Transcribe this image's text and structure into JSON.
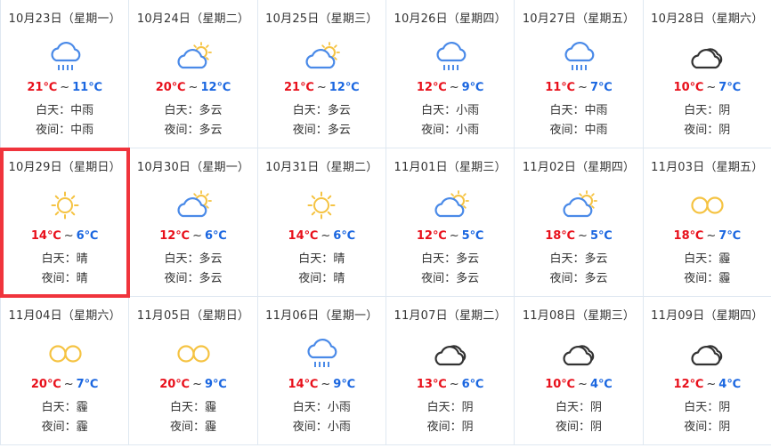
{
  "colors": {
    "high": "#e8101b",
    "low": "#1a66e0",
    "selected_border": "#f0343c",
    "rain_icon": "#4a8ae8",
    "sun_icon": "#f5c342",
    "overcast_icon": "#333333"
  },
  "labels": {
    "day": "白天：",
    "night": "夜间：",
    "tilde": "~"
  },
  "selected_index": 6,
  "days": [
    {
      "date": "10月23日（星期一）",
      "icon": "rain-icon",
      "high": "21℃",
      "low": "11℃",
      "day": "中雨",
      "night": "中雨"
    },
    {
      "date": "10月24日（星期二）",
      "icon": "partly-cloudy-icon",
      "high": "20℃",
      "low": "12℃",
      "day": "多云",
      "night": "多云"
    },
    {
      "date": "10月25日（星期三）",
      "icon": "partly-cloudy-icon",
      "high": "21℃",
      "low": "12℃",
      "day": "多云",
      "night": "多云"
    },
    {
      "date": "10月26日（星期四）",
      "icon": "rain-icon",
      "high": "12℃",
      "low": "9℃",
      "day": "小雨",
      "night": "小雨"
    },
    {
      "date": "10月27日（星期五）",
      "icon": "rain-icon",
      "high": "11℃",
      "low": "7℃",
      "day": "中雨",
      "night": "中雨"
    },
    {
      "date": "10月28日（星期六）",
      "icon": "overcast-icon",
      "high": "10℃",
      "low": "7℃",
      "day": "阴",
      "night": "阴"
    },
    {
      "date": "10月29日（星期日）",
      "icon": "sunny-icon",
      "high": "14℃",
      "low": "6℃",
      "day": "晴",
      "night": "晴"
    },
    {
      "date": "10月30日（星期一）",
      "icon": "partly-cloudy-icon",
      "high": "12℃",
      "low": "6℃",
      "day": "多云",
      "night": "多云"
    },
    {
      "date": "10月31日（星期二）",
      "icon": "sunny-icon",
      "high": "14℃",
      "low": "6℃",
      "day": "晴",
      "night": "晴"
    },
    {
      "date": "11月01日（星期三）",
      "icon": "partly-cloudy-icon",
      "high": "12℃",
      "low": "5℃",
      "day": "多云",
      "night": "多云"
    },
    {
      "date": "11月02日（星期四）",
      "icon": "partly-cloudy-icon",
      "high": "18℃",
      "low": "5℃",
      "day": "多云",
      "night": "多云"
    },
    {
      "date": "11月03日（星期五）",
      "icon": "haze-icon",
      "high": "18℃",
      "low": "7℃",
      "day": "霾",
      "night": "霾"
    },
    {
      "date": "11月04日（星期六）",
      "icon": "haze-icon",
      "high": "20℃",
      "low": "7℃",
      "day": "霾",
      "night": "霾"
    },
    {
      "date": "11月05日（星期日）",
      "icon": "haze-icon",
      "high": "20℃",
      "low": "9℃",
      "day": "霾",
      "night": "霾"
    },
    {
      "date": "11月06日（星期一）",
      "icon": "rain-icon",
      "high": "14℃",
      "low": "9℃",
      "day": "小雨",
      "night": "小雨"
    },
    {
      "date": "11月07日（星期二）",
      "icon": "overcast-icon",
      "high": "13℃",
      "low": "6℃",
      "day": "阴",
      "night": "阴"
    },
    {
      "date": "11月08日（星期三）",
      "icon": "overcast-icon",
      "high": "10℃",
      "low": "4℃",
      "day": "阴",
      "night": "阴"
    },
    {
      "date": "11月09日（星期四）",
      "icon": "overcast-icon",
      "high": "12℃",
      "low": "4℃",
      "day": "阴",
      "night": "阴"
    }
  ]
}
